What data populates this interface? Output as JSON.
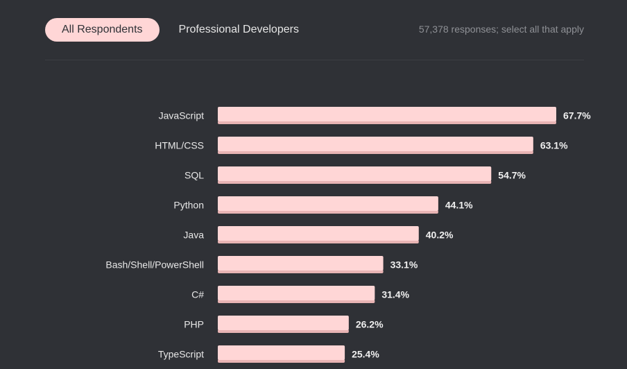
{
  "tabs": [
    {
      "label": "All Respondents",
      "active": true
    },
    {
      "label": "Professional Developers",
      "active": false
    }
  ],
  "responses_note": "57,378 responses; select all that apply",
  "colors": {
    "bar": "#ffd6d6",
    "bar_shadow": "#e8b4b4",
    "background": "#2f3136"
  },
  "chart_data": {
    "type": "bar",
    "orientation": "horizontal",
    "title": "",
    "xlabel": "",
    "ylabel": "",
    "unit": "%",
    "xlim": [
      0,
      67.7
    ],
    "grid": false,
    "categories": [
      "JavaScript",
      "HTML/CSS",
      "SQL",
      "Python",
      "Java",
      "Bash/Shell/PowerShell",
      "C#",
      "PHP",
      "TypeScript"
    ],
    "values": [
      67.7,
      63.1,
      54.7,
      44.1,
      40.2,
      33.1,
      31.4,
      26.2,
      25.4
    ],
    "value_labels": [
      "67.7%",
      "63.1%",
      "54.7%",
      "44.1%",
      "40.2%",
      "33.1%",
      "31.4%",
      "26.2%",
      "25.4%"
    ]
  }
}
